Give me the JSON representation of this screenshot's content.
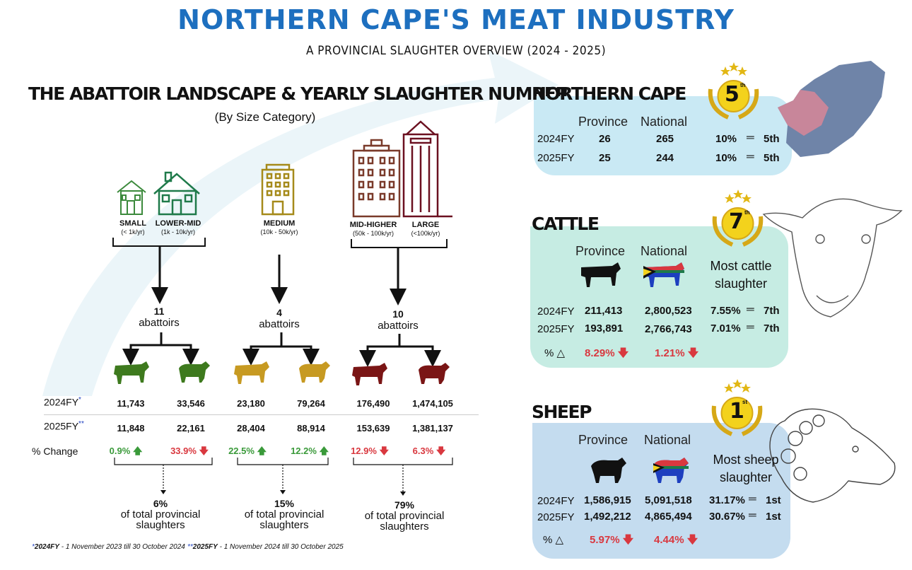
{
  "header": {
    "title": "NORTHERN CAPE'S MEAT INDUSTRY",
    "subtitle": "A PROVINCIAL SLAUGHTER OVERVIEW (2024 - 2025)"
  },
  "left": {
    "title": "THE ABATTOIR LANDSCAPE & YEARLY SLAUGHTER NUMBER",
    "subtitle": "(By Size Category)",
    "categories": [
      {
        "name": "SMALL",
        "range": "(< 1k/yr)"
      },
      {
        "name": "LOWER-MID",
        "range": "(1k - 10k/yr)"
      },
      {
        "name": "MEDIUM",
        "range": "(10k - 50k/yr)"
      },
      {
        "name": "MID-HIGHER",
        "range": "(50k - 100k/yr)"
      },
      {
        "name": "LARGE",
        "range": "(<100k/yr)"
      }
    ],
    "groups": [
      {
        "count": "11",
        "unit": "abattoirs",
        "share": "6%",
        "share_text": "of total provincial slaughters",
        "color": "#3e7a1e"
      },
      {
        "count": "4",
        "unit": "abattoirs",
        "share": "15%",
        "share_text": "of total provincial slaughters",
        "color": "#c79a22"
      },
      {
        "count": "10",
        "unit": "abattoirs",
        "share": "79%",
        "share_text": "of total provincial slaughters",
        "color": "#7a1515"
      }
    ],
    "row_labels": {
      "fy2024": "2024FY",
      "fy2025": "2025FY",
      "change": "% Change",
      "star1": "*",
      "star2": "**"
    },
    "values_2024": [
      "11,743",
      "33,546",
      "23,180",
      "79,264",
      "176,490",
      "1,474,105"
    ],
    "values_2025": [
      "11,848",
      "22,161",
      "28,404",
      "88,914",
      "153,639",
      "1,381,137"
    ],
    "changes": [
      {
        "text": "0.9%",
        "dir": "up"
      },
      {
        "text": "33.9%",
        "dir": "down"
      },
      {
        "text": "22.5%",
        "dir": "up"
      },
      {
        "text": "12.2%",
        "dir": "up"
      },
      {
        "text": "12.9%",
        "dir": "down"
      },
      {
        "text": "6.3%",
        "dir": "down"
      }
    ],
    "footnotes": {
      "f1_mark": "*",
      "f1_bold": "2024FY",
      "f1_text": " - 1 November 2023 till 30 October 2024",
      "f2_mark": "**",
      "f2_bold": "2025FY",
      "f2_text": " - 1 November 2024 till 30 October 2025"
    }
  },
  "northern_cape": {
    "title": "NORTHERN CAPE",
    "rank": "5",
    "rank_suffix": "th",
    "col_province": "Province",
    "col_national": "National",
    "rows": [
      {
        "fy": "2024FY",
        "province": "26",
        "national": "265",
        "pct": "10%",
        "rank": "5th"
      },
      {
        "fy": "2025FY",
        "province": "25",
        "national": "244",
        "pct": "10%",
        "rank": "5th"
      }
    ],
    "colors": {
      "panel": "#c9e9f4",
      "province": "#c8869a",
      "country": "#6f84a8"
    }
  },
  "cattle": {
    "title": "CATTLE",
    "rank": "7",
    "rank_suffix": "th",
    "col_province": "Province",
    "col_national": "National",
    "note": "Most cattle slaughter",
    "rows": [
      {
        "fy": "2024FY",
        "province": "211,413",
        "national": "2,800,523",
        "pct": "7.55%",
        "rank": "7th"
      },
      {
        "fy": "2025FY",
        "province": "193,891",
        "national": "2,766,743",
        "pct": "7.01%",
        "rank": "7th"
      }
    ],
    "delta_label": "% △",
    "delta_province": "8.29%",
    "delta_national": "1.21%",
    "colors": {
      "panel": "#c6ece3"
    }
  },
  "sheep": {
    "title": "SHEEP",
    "rank": "1",
    "rank_suffix": "st",
    "col_province": "Province",
    "col_national": "National",
    "note": "Most sheep slaughter",
    "rows": [
      {
        "fy": "2024FY",
        "province": "1,586,915",
        "national": "5,091,518",
        "pct": "31.17%",
        "rank": "1st"
      },
      {
        "fy": "2025FY",
        "province": "1,492,212",
        "national": "4,865,494",
        "pct": "30.67%",
        "rank": "1st"
      }
    ],
    "delta_label": "% △",
    "delta_province": "5.97%",
    "delta_national": "4.44%",
    "colors": {
      "panel": "#c4dcef"
    }
  },
  "chart_data": {
    "type": "table",
    "title": "THE ABATTOIR LANDSCAPE & YEARLY SLAUGHTER NUMBER",
    "columns": [
      "Small/Lower-mid cattle",
      "Small/Lower-mid sheep",
      "Medium cattle",
      "Medium sheep",
      "Mid-higher/Large cattle",
      "Mid-higher/Large sheep"
    ],
    "series": [
      {
        "name": "2024FY",
        "values": [
          11743,
          33546,
          23180,
          79264,
          176490,
          1474105
        ]
      },
      {
        "name": "2025FY",
        "values": [
          11848,
          22161,
          28404,
          88914,
          153639,
          1381137
        ]
      },
      {
        "name": "% Change",
        "values": [
          0.9,
          -33.9,
          22.5,
          12.2,
          -12.9,
          -6.3
        ]
      }
    ]
  }
}
